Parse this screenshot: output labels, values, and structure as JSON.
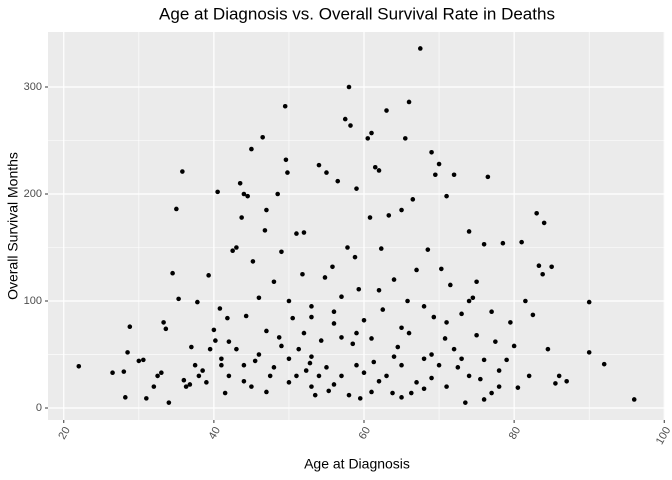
{
  "chart_data": {
    "type": "scatter",
    "title": "Age at Diagnosis vs. Overall Survival Rate in Deaths",
    "x_label": "Age at Diagnosis",
    "y_label": "Overall Survival Months",
    "color": "#000000",
    "xlim": [
      17.9,
      100.1
    ],
    "ylim": [
      -11.2,
      351.4
    ],
    "xticks": [
      20,
      40,
      60,
      80,
      100
    ],
    "yticks": [
      0,
      100,
      200,
      300
    ],
    "x_minor_ticks": [
      30,
      50,
      70,
      90
    ],
    "y_minor_ticks": [
      50,
      150,
      250
    ],
    "grid": true,
    "x": [
      22,
      26.5,
      28,
      28.2,
      28.5,
      28.8,
      30,
      30.6,
      31,
      32,
      32.5,
      33,
      33.3,
      33.6,
      34,
      34.5,
      35,
      35.3,
      35.8,
      36,
      36.3,
      36.8,
      37,
      37.5,
      37.8,
      38,
      38.5,
      39,
      39.3,
      39.5,
      40,
      40.2,
      40.5,
      40.8,
      41,
      41.5,
      41.8,
      42,
      42.5,
      43,
      43.5,
      43.7,
      44,
      44.3,
      44.5,
      45,
      45.2,
      45.5,
      46,
      46.5,
      46.8,
      47,
      47.5,
      48,
      48.5,
      48.7,
      49,
      49.5,
      49.6,
      49.8,
      50,
      50.5,
      51,
      51.3,
      51.8,
      52,
      52.3,
      52.8,
      53,
      53.5,
      54,
      54.3,
      54.8,
      55,
      55.3,
      55.8,
      56,
      56.5,
      57,
      57.5,
      57.8,
      58,
      58.2,
      58.5,
      58.8,
      59,
      59.3,
      59.5,
      60,
      60.5,
      60.8,
      61,
      61.3,
      61.5,
      62,
      62.3,
      62.5,
      63,
      63.3,
      63.8,
      64,
      64.5,
      65,
      65.5,
      65.8,
      66,
      66.3,
      66.5,
      67,
      67.5,
      68,
      68.5,
      69,
      69.3,
      69.5,
      70,
      70.3,
      70.8,
      71,
      71.5,
      72,
      72.5,
      73,
      73.5,
      74,
      74.5,
      75,
      75.5,
      76,
      76.5,
      77,
      77.5,
      78,
      78.5,
      79,
      79.5,
      80,
      80.5,
      81,
      81.5,
      82,
      82.5,
      83,
      83.3,
      83.8,
      84,
      84.5,
      85,
      85.5,
      86,
      87,
      90,
      90,
      92,
      96,
      44,
      46,
      48,
      50,
      52,
      54,
      56,
      58,
      60,
      62,
      64,
      66,
      68,
      70,
      72,
      74,
      76,
      78,
      45,
      47,
      49,
      51,
      53,
      55,
      57,
      59,
      61,
      63,
      65,
      67,
      69,
      71,
      73,
      75,
      77,
      42,
      43,
      50,
      53,
      56,
      59,
      62,
      65,
      68,
      71,
      74,
      41,
      44,
      47,
      53,
      57,
      61,
      65,
      69,
      76
    ],
    "values": [
      39,
      33,
      34,
      10,
      52,
      76,
      44,
      45,
      9,
      20,
      30,
      33,
      80,
      74,
      5,
      126,
      186,
      102,
      221,
      26,
      20,
      22,
      57,
      40,
      99,
      30,
      35,
      24,
      124,
      55,
      73,
      63,
      202,
      93,
      46,
      14,
      84,
      62,
      147,
      150,
      210,
      178,
      200,
      86,
      198,
      242,
      137,
      44,
      103,
      253,
      166,
      185,
      30,
      118,
      200,
      66,
      146,
      282,
      232,
      220,
      24,
      84,
      163,
      55,
      125,
      164,
      35,
      42,
      95,
      12,
      227,
      63,
      122,
      220,
      16,
      132,
      79,
      212,
      104,
      270,
      150,
      300,
      264,
      60,
      141,
      205,
      111,
      9,
      82,
      252,
      178,
      257,
      43,
      225,
      222,
      149,
      92,
      278,
      180,
      14,
      120,
      57,
      185,
      252,
      100,
      286,
      14,
      195,
      129,
      336,
      46,
      148,
      239,
      85,
      218,
      228,
      130,
      65,
      198,
      115,
      218,
      38,
      88,
      5,
      165,
      103,
      118,
      27,
      153,
      216,
      90,
      62,
      20,
      154,
      45,
      80,
      58,
      19,
      155,
      100,
      30,
      87,
      182,
      133,
      125,
      173,
      55,
      132,
      23,
      30,
      25,
      99,
      52,
      41,
      8,
      40,
      50,
      38,
      46,
      70,
      30,
      22,
      12,
      33,
      25,
      48,
      70,
      18,
      40,
      55,
      30,
      45,
      35,
      20,
      72,
      58,
      30,
      48,
      38,
      66,
      40,
      65,
      30,
      40,
      24,
      50,
      20,
      46,
      68,
      14,
      30,
      55,
      100,
      85,
      90,
      70,
      110,
      75,
      95,
      80,
      100,
      40,
      25,
      15,
      20,
      30,
      15,
      10,
      28,
      8
    ]
  }
}
